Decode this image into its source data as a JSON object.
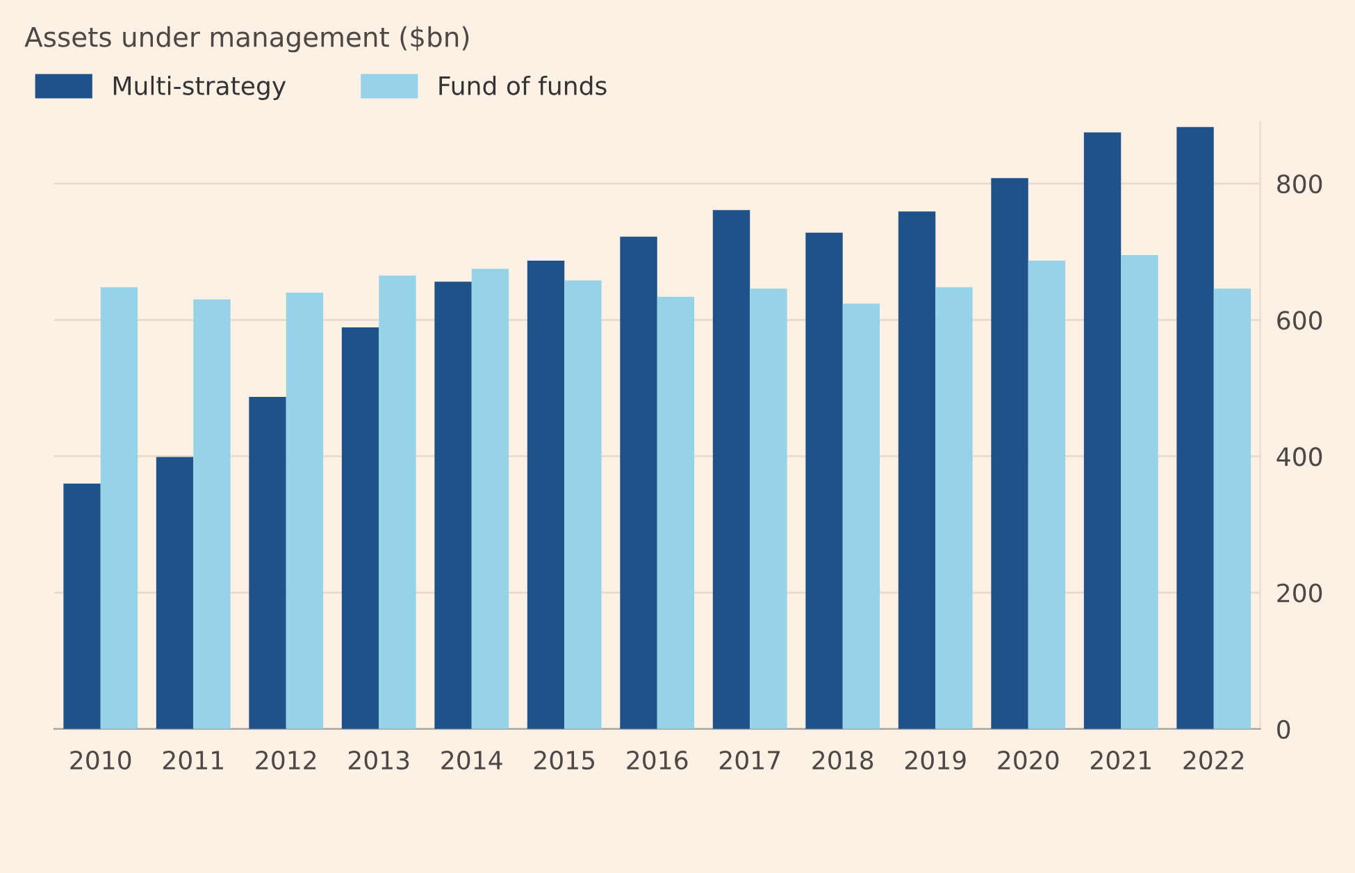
{
  "chart_data": {
    "type": "bar",
    "title": "Assets under management ($bn)",
    "categories": [
      "2010",
      "2011",
      "2012",
      "2013",
      "2014",
      "2015",
      "2016",
      "2017",
      "2018",
      "2019",
      "2020",
      "2021",
      "2022"
    ],
    "series": [
      {
        "name": "Multi-strategy",
        "color": "#1f5288",
        "values": [
          360,
          399,
          487,
          589,
          656,
          687,
          722,
          761,
          728,
          759,
          808,
          875,
          883
        ]
      },
      {
        "name": "Fund of funds",
        "color": "#96d3e8",
        "values": [
          648,
          630,
          640,
          665,
          675,
          658,
          634,
          646,
          624,
          648,
          687,
          695,
          646
        ]
      }
    ],
    "ylim": [
      0,
      890
    ],
    "yticks": [
      0,
      200,
      400,
      600,
      800
    ],
    "grid": "y",
    "legend": "top left"
  }
}
